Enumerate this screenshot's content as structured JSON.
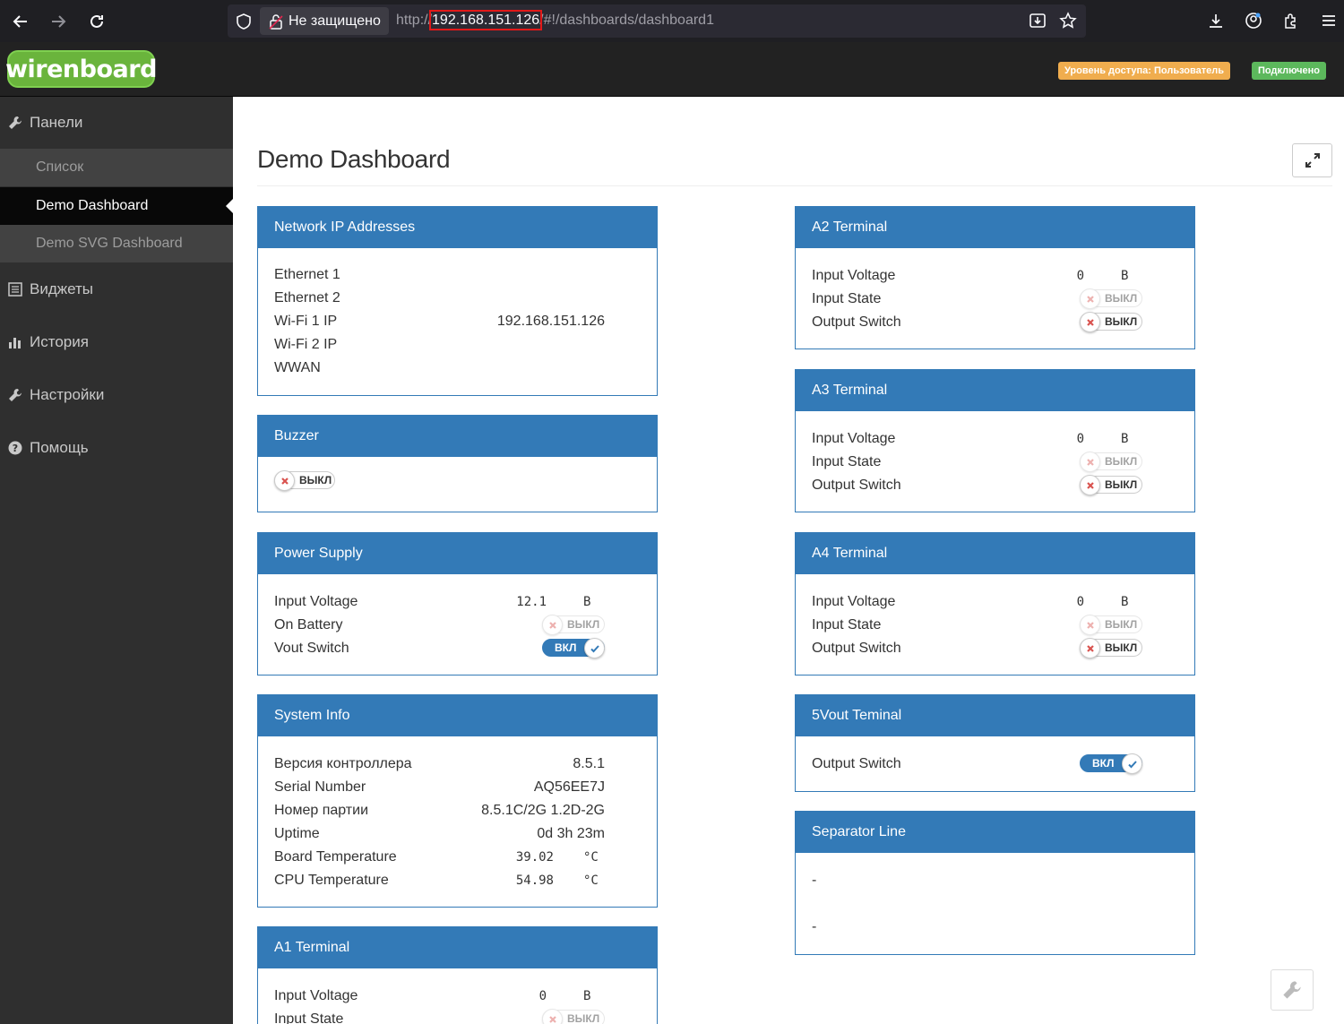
{
  "browser": {
    "insecure_label": "Не защищено",
    "url_scheme": "http://",
    "url_host": "192.168.151.126",
    "url_path": "/#!/dashboards/dashboard1"
  },
  "header": {
    "logo_text": "wirenboard",
    "access_badge": "Уровень доступа: Пользователь",
    "connection_badge": "Подключено"
  },
  "sidebar": {
    "panels_label": "Панели",
    "items": [
      {
        "label": "Список"
      },
      {
        "label": "Demo Dashboard"
      },
      {
        "label": "Demo SVG Dashboard"
      }
    ],
    "widgets_label": "Виджеты",
    "history_label": "История",
    "settings_label": "Настройки",
    "help_label": "Помощь"
  },
  "page": {
    "title": "Demo Dashboard"
  },
  "toggle_text": {
    "off": "ВЫКЛ",
    "on": "ВКЛ"
  },
  "widgets": {
    "network": {
      "title": "Network IP Addresses",
      "rows": [
        {
          "label": "Ethernet 1",
          "value": ""
        },
        {
          "label": "Ethernet 2",
          "value": ""
        },
        {
          "label": "Wi-Fi 1 IP",
          "value": "192.168.151.126"
        },
        {
          "label": "Wi-Fi 2 IP",
          "value": ""
        },
        {
          "label": "WWAN",
          "value": ""
        }
      ]
    },
    "buzzer": {
      "title": "Buzzer"
    },
    "power": {
      "title": "Power Supply",
      "input_voltage_label": "Input Voltage",
      "input_voltage": "12.1",
      "unit_v": "В",
      "on_battery_label": "On Battery",
      "vout_switch_label": "Vout Switch"
    },
    "sysinfo": {
      "title": "System Info",
      "rows": [
        {
          "label": "Версия контроллера",
          "value": "8.5.1"
        },
        {
          "label": "Serial Number",
          "value": "AQ56EE7J"
        },
        {
          "label": "Номер партии",
          "value": "8.5.1C/2G 1.2D-2G"
        },
        {
          "label": "Uptime",
          "value": "0d 3h 23m"
        }
      ],
      "board_temp_label": "Board Temperature",
      "board_temp": "39.02",
      "cpu_temp_label": "CPU Temperature",
      "cpu_temp": "54.98",
      "unit_c": "°C"
    },
    "a1": {
      "title": "A1 Terminal",
      "voltage_label": "Input Voltage",
      "voltage": "0",
      "unit": "В",
      "state_label": "Input State"
    },
    "a2": {
      "title": "A2 Terminal",
      "voltage_label": "Input Voltage",
      "voltage": "0",
      "unit": "В",
      "state_label": "Input State",
      "switch_label": "Output Switch"
    },
    "a3": {
      "title": "A3 Terminal",
      "voltage_label": "Input Voltage",
      "voltage": "0",
      "unit": "В",
      "state_label": "Input State",
      "switch_label": "Output Switch"
    },
    "a4": {
      "title": "A4 Terminal",
      "voltage_label": "Input Voltage",
      "voltage": "0",
      "unit": "В",
      "state_label": "Input State",
      "switch_label": "Output Switch"
    },
    "vout5": {
      "title": "5Vout Teminal",
      "switch_label": "Output Switch"
    },
    "separator": {
      "title": "Separator Line",
      "line1": "-",
      "line2": "-"
    }
  },
  "colors": {
    "panel_blue": "#337ab7",
    "logo_green": "#6ab43c",
    "badge_orange": "#f0ad4e",
    "badge_green": "#5cb85c",
    "off_x_red": "#d9534f"
  }
}
